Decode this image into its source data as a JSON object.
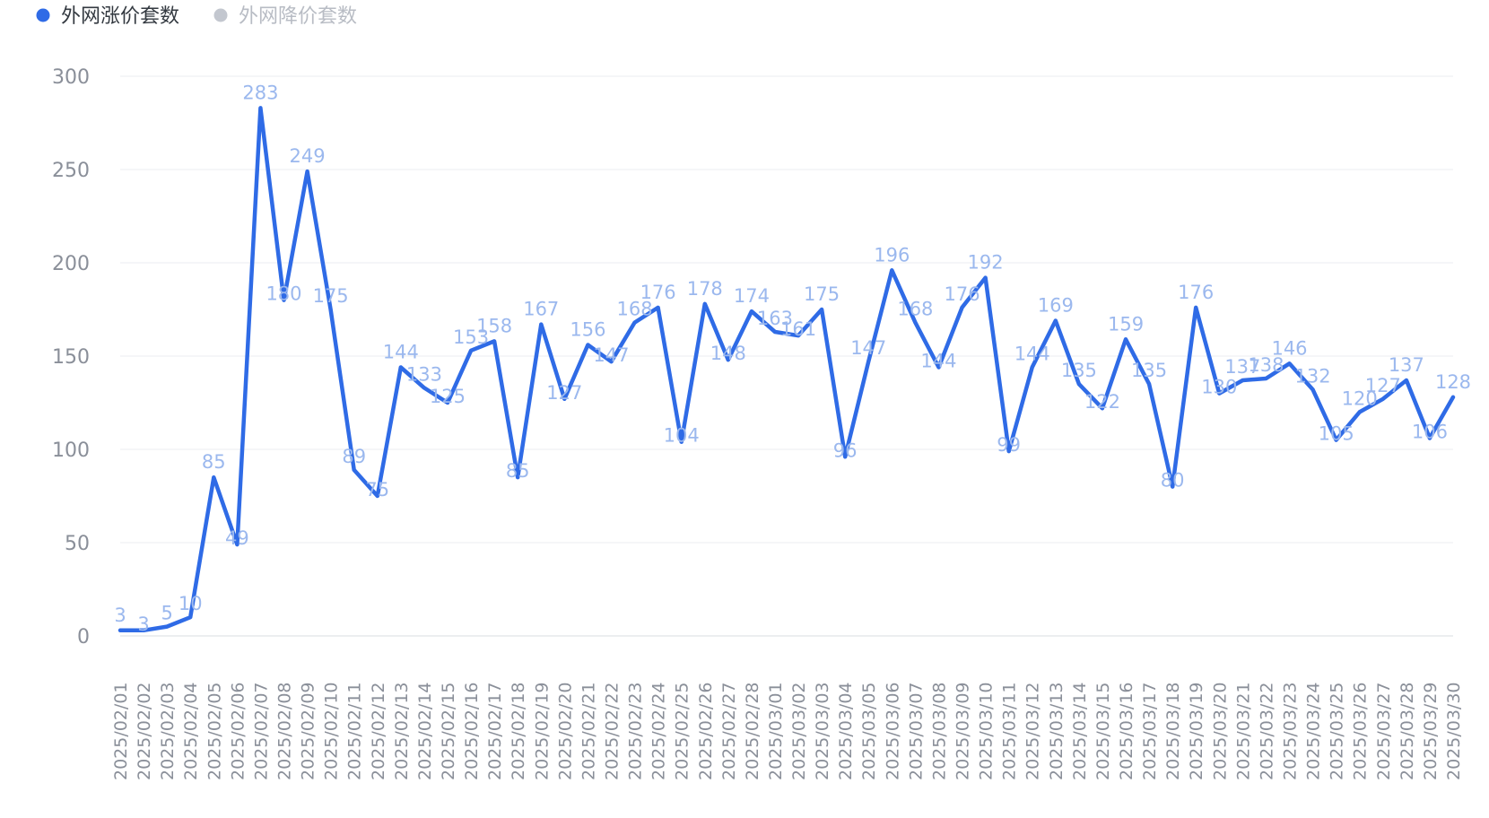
{
  "chart_data": {
    "type": "line",
    "legend": {
      "placement": "top-left",
      "items": [
        {
          "label": "外网涨价套数",
          "color": "#2f6be6",
          "active": true
        },
        {
          "label": "外网降价套数",
          "color": "#c3c7cf",
          "active": false
        }
      ]
    },
    "ylim": [
      0,
      300
    ],
    "y_ticks": [
      0,
      50,
      100,
      150,
      200,
      250,
      300
    ],
    "grid": "horizontal",
    "x": [
      "2025/02/01",
      "2025/02/02",
      "2025/02/03",
      "2025/02/04",
      "2025/02/05",
      "2025/02/06",
      "2025/02/07",
      "2025/02/08",
      "2025/02/09",
      "2025/02/10",
      "2025/02/11",
      "2025/02/12",
      "2025/02/13",
      "2025/02/14",
      "2025/02/15",
      "2025/02/16",
      "2025/02/17",
      "2025/02/18",
      "2025/02/19",
      "2025/02/20",
      "2025/02/21",
      "2025/02/22",
      "2025/02/23",
      "2025/02/24",
      "2025/02/25",
      "2025/02/26",
      "2025/02/27",
      "2025/02/28",
      "2025/03/01",
      "2025/03/02",
      "2025/03/03",
      "2025/03/04",
      "2025/03/05",
      "2025/03/06",
      "2025/03/07",
      "2025/03/08",
      "2025/03/09",
      "2025/03/10",
      "2025/03/11",
      "2025/03/12",
      "2025/03/13",
      "2025/03/14",
      "2025/03/15",
      "2025/03/16",
      "2025/03/17",
      "2025/03/18",
      "2025/03/19",
      "2025/03/20",
      "2025/03/21",
      "2025/03/22",
      "2025/03/23",
      "2025/03/24",
      "2025/03/25",
      "2025/03/26",
      "2025/03/27",
      "2025/03/28",
      "2025/03/29",
      "2025/03/30"
    ],
    "series": [
      {
        "name": "外网涨价套数",
        "color": "#2f6be6",
        "label_color": "#9bb8ee",
        "values": [
          3,
          3,
          5,
          10,
          85,
          49,
          283,
          180,
          249,
          175,
          89,
          75,
          144,
          133,
          125,
          153,
          158,
          85,
          167,
          127,
          156,
          147,
          168,
          176,
          104,
          178,
          148,
          174,
          163,
          161,
          175,
          96,
          147,
          196,
          168,
          144,
          176,
          192,
          99,
          144,
          169,
          135,
          122,
          159,
          135,
          80,
          176,
          130,
          137,
          138,
          146,
          132,
          105,
          120,
          127,
          137,
          106,
          128
        ]
      }
    ]
  }
}
